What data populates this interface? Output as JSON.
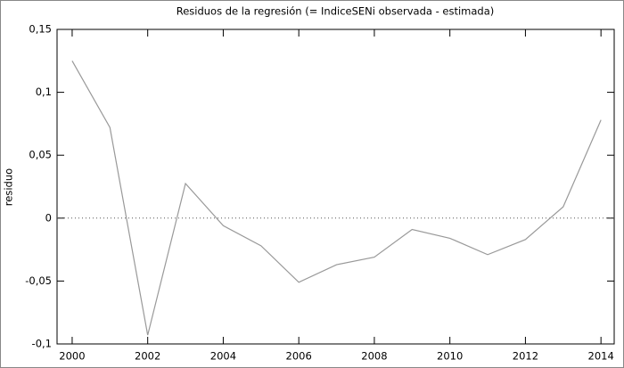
{
  "chart_data": {
    "type": "line",
    "title": "Residuos de la regresión (= IndiceSENi observada - estimada)",
    "y_label": "residuo",
    "x": [
      2000,
      2001,
      2002,
      2003,
      2004,
      2005,
      2006,
      2007,
      2008,
      2009,
      2010,
      2011,
      2012,
      2013,
      2014
    ],
    "series": [
      {
        "color": "#999999",
        "values": [
          0.125,
          0.072,
          -0.093,
          0.0275,
          -0.006,
          -0.022,
          -0.051,
          -0.037,
          -0.031,
          -0.009,
          -0.016,
          -0.029,
          -0.017,
          0.009,
          0.078
        ]
      }
    ],
    "xlim": [
      1999.6,
      2014.35
    ],
    "xticks": [
      2000,
      2002,
      2004,
      2006,
      2008,
      2010,
      2012,
      2014
    ],
    "ylim": [
      -0.1,
      0.15
    ],
    "yticks": [
      {
        "value": -0.1,
        "label": "-0,1"
      },
      {
        "value": -0.05,
        "label": "-0,05"
      },
      {
        "value": 0,
        "label": "0"
      },
      {
        "value": 0.05,
        "label": "0,05"
      },
      {
        "value": 0.1,
        "label": "0,1"
      },
      {
        "value": 0.15,
        "label": "0,15"
      }
    ],
    "zero_line": true
  }
}
